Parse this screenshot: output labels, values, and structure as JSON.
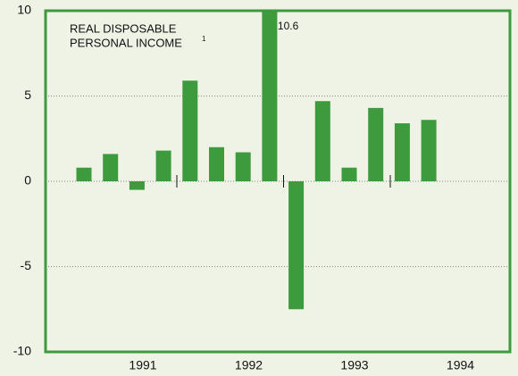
{
  "chart_data": {
    "type": "bar",
    "title": [
      "REAL DISPOSABLE",
      "PERSONAL INCOME"
    ],
    "title_footnote": "1",
    "categories": [
      null,
      null,
      null,
      null,
      null,
      null,
      null,
      null,
      null,
      null,
      null,
      null,
      null,
      null
    ],
    "values": [
      0.8,
      1.6,
      -0.5,
      1.8,
      5.9,
      2.0,
      1.7,
      10.6,
      -7.5,
      4.7,
      0.8,
      4.3,
      3.4,
      3.6
    ],
    "value_labels": [
      null,
      null,
      null,
      null,
      null,
      null,
      null,
      "10.6",
      null,
      null,
      null,
      null,
      null,
      null
    ],
    "years": [
      "1991",
      "1992",
      "1993",
      "1994"
    ],
    "color": "#3d9a3d",
    "ylim": [
      -10,
      10
    ],
    "yticks": [
      -10,
      -5,
      0,
      5,
      10
    ],
    "grid": true
  }
}
